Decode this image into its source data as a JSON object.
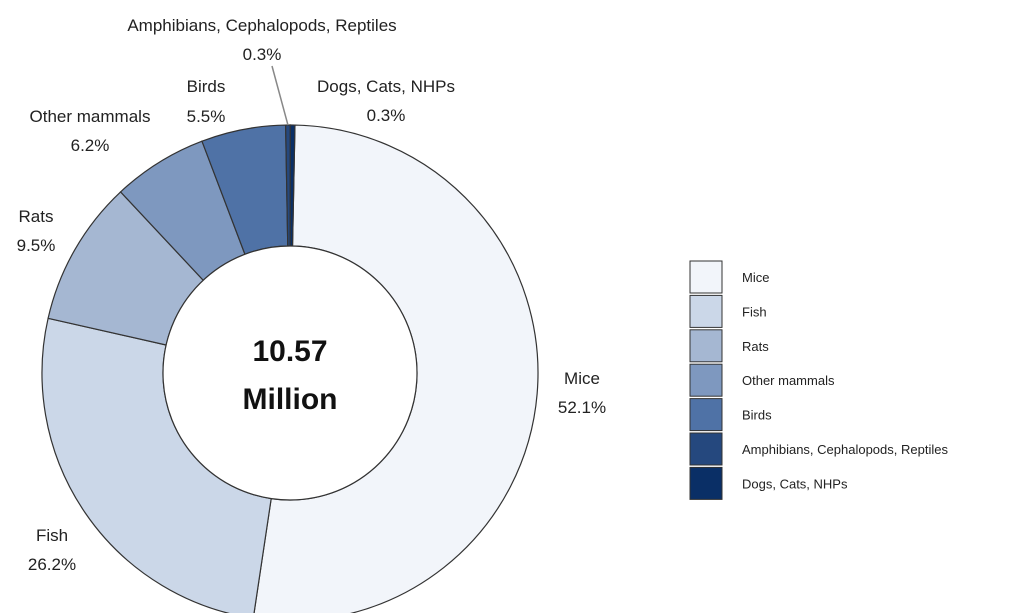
{
  "chart_data": {
    "type": "pie",
    "style": "donut",
    "center_text": [
      "10.57",
      "Million"
    ],
    "categories": [
      "Mice",
      "Fish",
      "Rats",
      "Other mammals",
      "Birds",
      "Amphibians, Cephalopods, Reptiles",
      "Dogs, Cats, NHPs"
    ],
    "values": [
      52.1,
      26.2,
      9.5,
      6.2,
      5.5,
      0.3,
      0.3
    ],
    "value_labels": [
      "52.1%",
      "26.2%",
      "9.5%",
      "6.2%",
      "5.5%",
      "0.3%",
      "0.3%"
    ],
    "colors": [
      "#f2f5fa",
      "#cbd7e8",
      "#a5b7d2",
      "#7e98bf",
      "#4f72a6",
      "#25487e",
      "#0a2f66"
    ],
    "legend": {
      "position": "right",
      "entries": [
        "Mice",
        "Fish",
        "Rats",
        "Other mammals",
        "Birds",
        "Amphibians, Cephalopods, Reptiles",
        "Dogs, Cats, NHPs"
      ]
    }
  }
}
